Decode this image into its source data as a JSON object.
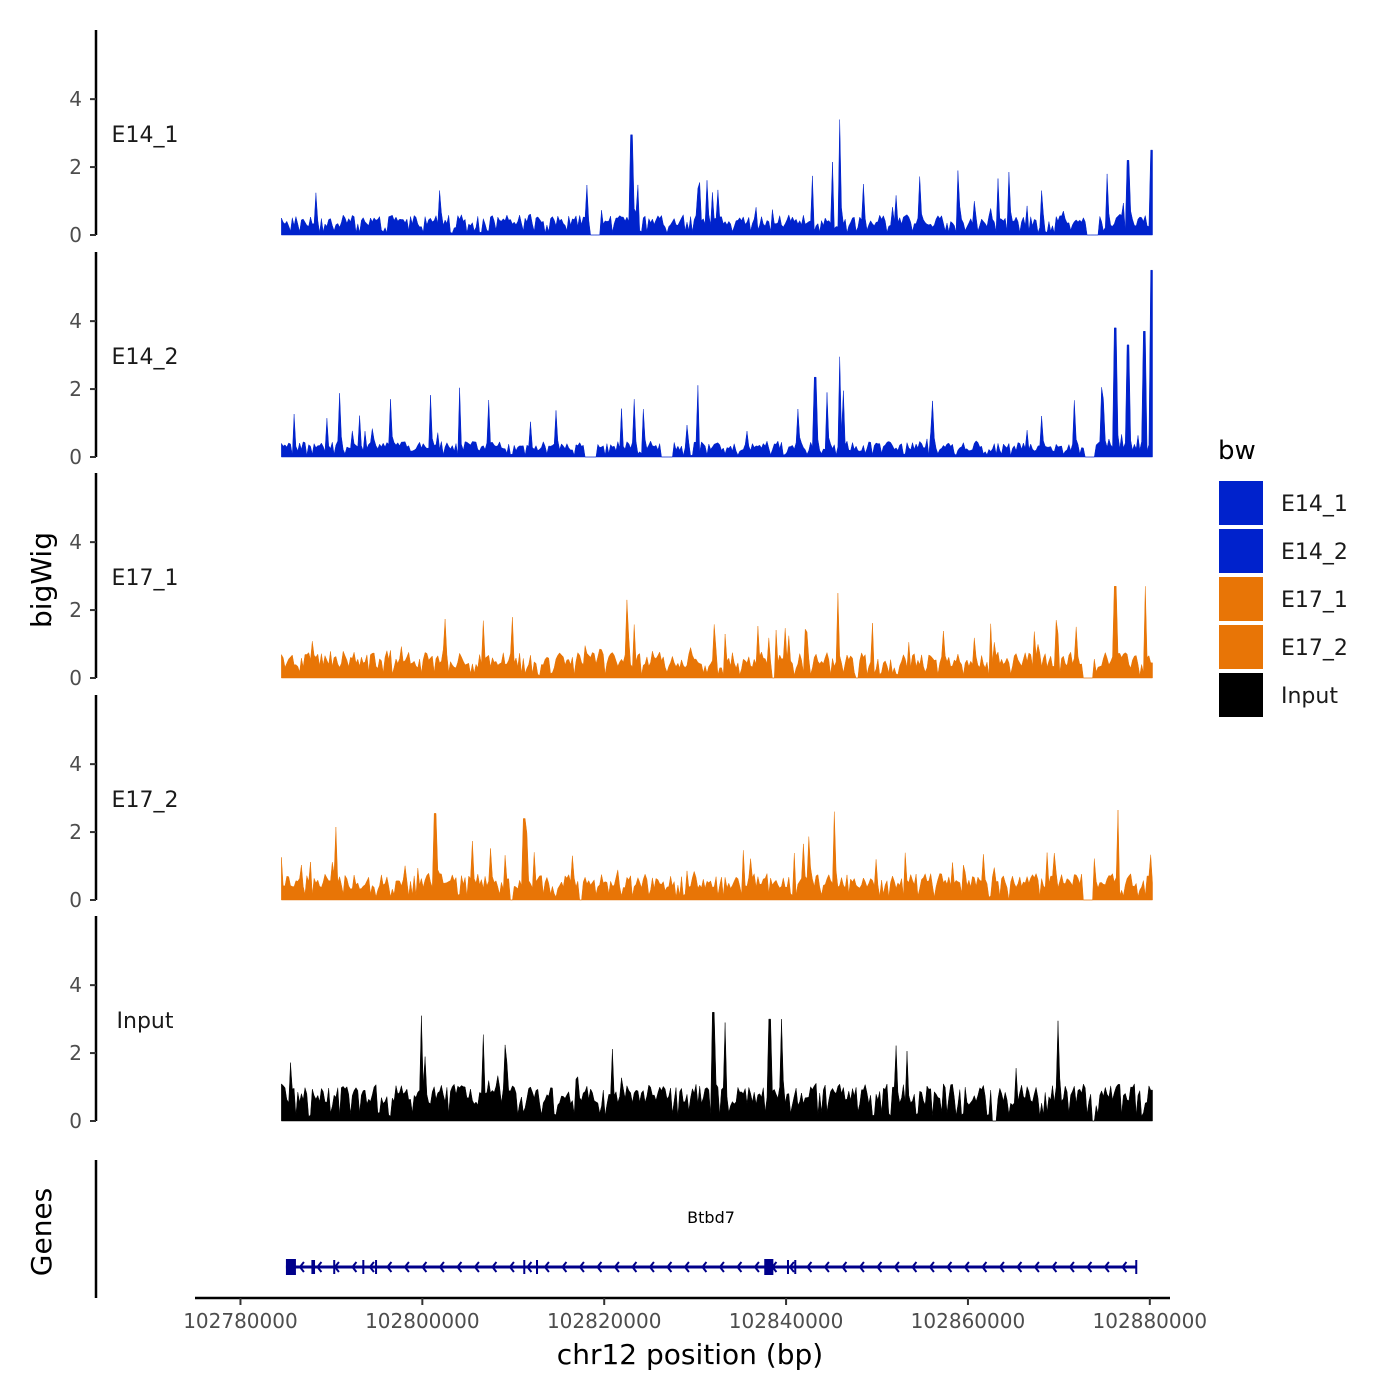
{
  "chart_data": {
    "type": "area",
    "chromosome": "chr12",
    "xlabel": "chr12 position (bp)",
    "ylabel": "bigWig",
    "genes_label": "Genes",
    "xlim": [
      102775000,
      102882000
    ],
    "xticks": [
      102780000,
      102800000,
      102820000,
      102840000,
      102860000,
      102880000
    ],
    "xtick_labels": [
      "102780000",
      "102800000",
      "102820000",
      "102840000",
      "102860000",
      "102880000"
    ],
    "ylim": [
      0,
      5.8
    ],
    "yticks": [
      0,
      2,
      4
    ],
    "ytick_labels": [
      "0",
      "2",
      "4"
    ],
    "region": [
      102784500,
      102880300
    ],
    "bin_size": 200,
    "series": [
      {
        "name": "E14_1",
        "color": "#0022cc",
        "baseline": 0.45,
        "noise": 0.35,
        "spike_rate": 0.06,
        "spike_max": 1.6,
        "gaps": [
          [
            102818500,
            102819500
          ],
          [
            102873100,
            102874300
          ]
        ],
        "peaks": [
          {
            "x": 102823000,
            "y": 2.95
          },
          {
            "x": 102845900,
            "y": 3.4
          },
          {
            "x": 102858900,
            "y": 1.9
          },
          {
            "x": 102880200,
            "y": 2.5
          },
          {
            "x": 102877600,
            "y": 2.2
          },
          {
            "x": 102875300,
            "y": 1.8
          }
        ]
      },
      {
        "name": "E14_2",
        "color": "#0022cc",
        "baseline": 0.3,
        "noise": 0.3,
        "spike_rate": 0.07,
        "spike_max": 1.8,
        "gaps": [
          [
            102817800,
            102819200
          ],
          [
            102826300,
            102827500
          ],
          [
            102872800,
            102874000
          ]
        ],
        "peaks": [
          {
            "x": 102845900,
            "y": 2.95
          },
          {
            "x": 102843200,
            "y": 2.35
          },
          {
            "x": 102876200,
            "y": 3.8
          },
          {
            "x": 102877600,
            "y": 3.3
          },
          {
            "x": 102879400,
            "y": 3.7
          },
          {
            "x": 102880200,
            "y": 5.5
          }
        ]
      },
      {
        "name": "E17_1",
        "color": "#e87506",
        "baseline": 0.55,
        "noise": 0.45,
        "spike_rate": 0.08,
        "spike_max": 1.3,
        "gaps": [
          [
            102838400,
            102838700
          ],
          [
            102847700,
            102847900
          ],
          [
            102872600,
            102873700
          ]
        ],
        "peaks": [
          {
            "x": 102822500,
            "y": 2.3
          },
          {
            "x": 102845700,
            "y": 2.5
          },
          {
            "x": 102876200,
            "y": 2.7
          },
          {
            "x": 102879500,
            "y": 2.7
          }
        ]
      },
      {
        "name": "E17_2",
        "color": "#e87506",
        "baseline": 0.6,
        "noise": 0.45,
        "spike_rate": 0.08,
        "spike_max": 1.4,
        "gaps": [
          [
            102809700,
            102810000
          ],
          [
            102817300,
            102817500
          ],
          [
            102864400,
            102864600
          ],
          [
            102872700,
            102873800
          ]
        ],
        "peaks": [
          {
            "x": 102801400,
            "y": 2.55
          },
          {
            "x": 102811200,
            "y": 2.4
          },
          {
            "x": 102845300,
            "y": 2.6
          },
          {
            "x": 102876500,
            "y": 2.65
          }
        ]
      },
      {
        "name": "Input",
        "color": "#000000",
        "baseline": 0.9,
        "noise": 0.6,
        "spike_rate": 0.07,
        "spike_max": 1.5,
        "gaps": [
          [
            102862700,
            102863200
          ],
          [
            102873600,
            102873900
          ]
        ],
        "peaks": [
          {
            "x": 102799900,
            "y": 3.1
          },
          {
            "x": 102832000,
            "y": 3.2
          },
          {
            "x": 102833300,
            "y": 2.9
          },
          {
            "x": 102838200,
            "y": 3.0
          },
          {
            "x": 102839500,
            "y": 3.0
          },
          {
            "x": 102869900,
            "y": 2.95
          }
        ]
      }
    ],
    "gene": {
      "name": "Btbd7",
      "strand": "-",
      "start": 102785000,
      "end": 102878500,
      "color": "#00008b",
      "exons": [
        [
          102785000,
          102786100
        ],
        [
          102787800,
          102788200
        ],
        [
          102790200,
          102790400
        ],
        [
          102793400,
          102793600
        ],
        [
          102794800,
          102795000
        ],
        [
          102811100,
          102811300
        ],
        [
          102812500,
          102812700
        ],
        [
          102837600,
          102838600
        ],
        [
          102840100,
          102840300
        ],
        [
          102840900,
          102841100
        ],
        [
          102878400,
          102878500
        ]
      ]
    },
    "legend": {
      "title": "bw",
      "position": "right",
      "entries": [
        {
          "label": "E14_1",
          "color": "#0022cc"
        },
        {
          "label": "E14_2",
          "color": "#0022cc"
        },
        {
          "label": "E17_1",
          "color": "#e87506"
        },
        {
          "label": "E17_2",
          "color": "#e87506"
        },
        {
          "label": "Input",
          "color": "#000000"
        }
      ]
    }
  }
}
